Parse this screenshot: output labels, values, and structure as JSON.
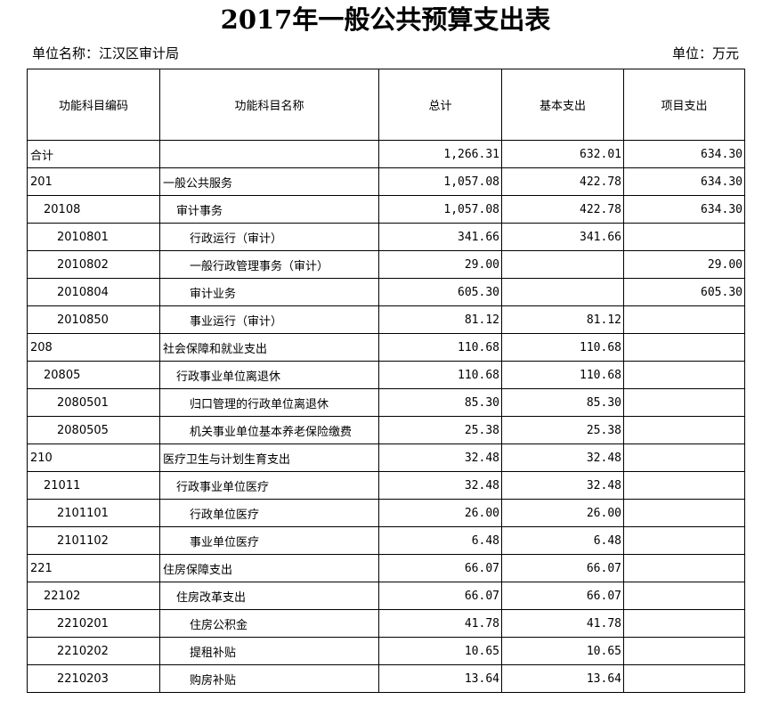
{
  "title": "2017年一般公共预算支出表",
  "unit_name": "单位名称：江汉区审计局",
  "unit": "单位：万元",
  "columns": [
    "功能科目编码",
    "功能科目名称",
    "总计",
    "基本支出",
    "项目支出"
  ],
  "rows": [
    {
      "code": "合计",
      "name": "",
      "total": "1,266.31",
      "basic": "632.01",
      "project": "634.30",
      "level": 1
    },
    {
      "code": "201",
      "name": "一般公共服务",
      "total": "1,057.08",
      "basic": "422.78",
      "project": "634.30",
      "level": 1
    },
    {
      "code": "20108",
      "name": "审计事务",
      "total": "1,057.08",
      "basic": "422.78",
      "project": "634.30",
      "level": 2
    },
    {
      "code": "2010801",
      "name": "行政运行（审计）",
      "total": "341.66",
      "basic": "341.66",
      "project": "",
      "level": 3
    },
    {
      "code": "2010802",
      "name": "一般行政管理事务（审计）",
      "total": "29.00",
      "basic": "",
      "project": "29.00",
      "level": 3
    },
    {
      "code": "2010804",
      "name": "审计业务",
      "total": "605.30",
      "basic": "",
      "project": "605.30",
      "level": 3
    },
    {
      "code": "2010850",
      "name": "事业运行（审计）",
      "total": "81.12",
      "basic": "81.12",
      "project": "",
      "level": 3
    },
    {
      "code": "208",
      "name": "社会保障和就业支出",
      "total": "110.68",
      "basic": "110.68",
      "project": "",
      "level": 1
    },
    {
      "code": "20805",
      "name": "行政事业单位离退休",
      "total": "110.68",
      "basic": "110.68",
      "project": "",
      "level": 2
    },
    {
      "code": "2080501",
      "name": "归口管理的行政单位离退休",
      "total": "85.30",
      "basic": "85.30",
      "project": "",
      "level": 3
    },
    {
      "code": "2080505",
      "name": "机关事业单位基本养老保险缴费",
      "total": "25.38",
      "basic": "25.38",
      "project": "",
      "level": 3
    },
    {
      "code": "210",
      "name": "医疗卫生与计划生育支出",
      "total": "32.48",
      "basic": "32.48",
      "project": "",
      "level": 1
    },
    {
      "code": "21011",
      "name": "行政事业单位医疗",
      "total": "32.48",
      "basic": "32.48",
      "project": "",
      "level": 2
    },
    {
      "code": "2101101",
      "name": "行政单位医疗",
      "total": "26.00",
      "basic": "26.00",
      "project": "",
      "level": 3
    },
    {
      "code": "2101102",
      "name": "事业单位医疗",
      "total": "6.48",
      "basic": "6.48",
      "project": "",
      "level": 3
    },
    {
      "code": "221",
      "name": "住房保障支出",
      "total": "66.07",
      "basic": "66.07",
      "project": "",
      "level": 1
    },
    {
      "code": "22102",
      "name": "住房改革支出",
      "total": "66.07",
      "basic": "66.07",
      "project": "",
      "level": 2
    },
    {
      "code": "2210201",
      "name": "住房公积金",
      "total": "41.78",
      "basic": "41.78",
      "project": "",
      "level": 3
    },
    {
      "code": "2210202",
      "name": "提租补贴",
      "total": "10.65",
      "basic": "10.65",
      "project": "",
      "level": 3
    },
    {
      "code": "2210203",
      "name": "购房补贴",
      "total": "13.64",
      "basic": "13.64",
      "project": "",
      "level": 3
    }
  ]
}
